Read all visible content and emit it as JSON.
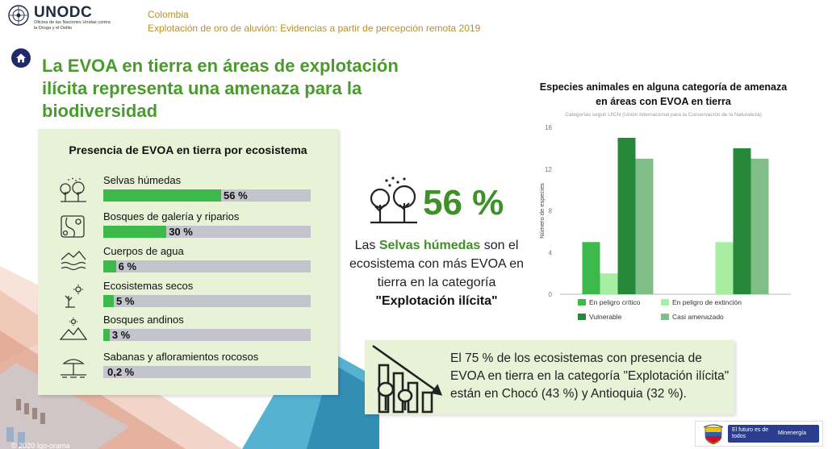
{
  "logo": {
    "name": "UNODC",
    "sub": "Oficina de las Naciones Unidas contra la Droga y el Delito"
  },
  "header": {
    "line1": "Colombia",
    "line2": "Explotación de oro de aluvión: Evidencias a partir de percepción remota 2019"
  },
  "main_title": "La EVOA en tierra en áreas de explotación ilícita representa una amenaza para la biodiversidad",
  "ecosystems": {
    "title": "Presencia de EVOA en tierra por ecosistema",
    "items": [
      {
        "label": "Selvas húmedas",
        "value": 56,
        "value_label": "56 %",
        "icon": "tropical-forest-icon"
      },
      {
        "label": "Bosques de galería y riparios",
        "value": 30,
        "value_label": "30 %",
        "icon": "riparian-forest-icon"
      },
      {
        "label": "Cuerpos de agua",
        "value": 6,
        "value_label": "6 %",
        "icon": "water-body-icon"
      },
      {
        "label": "Ecosistemas secos",
        "value": 5,
        "value_label": "5 %",
        "icon": "dry-ecosystem-icon"
      },
      {
        "label": "Bosques andinos",
        "value": 3,
        "value_label": "3 %",
        "icon": "andean-forest-icon"
      },
      {
        "label": "Sabanas y afloramientos rocosos",
        "value": 0.2,
        "value_label": "0,2 %",
        "icon": "savanna-icon"
      }
    ]
  },
  "highlight": {
    "value": "56 %",
    "text_pre": "Las",
    "text_hl": "Selvas húmedas",
    "text_mid": "son el ecosistema con más EVOA en tierra en la categoría",
    "text_strong": "\"Explotación ilícita\""
  },
  "chart_data": {
    "type": "bar",
    "title": "Especies animales en alguna categoría de amenaza en áreas con EVOA en tierra",
    "subtitle": "Categorías según UICN (Unión Internacional para la Conservación de la Naturaleza)",
    "ylabel": "Número de especies",
    "xlabel": "",
    "ylim": [
      0,
      16
    ],
    "yticks": [
      0,
      4,
      8,
      12,
      16
    ],
    "categories": [
      "",
      ""
    ],
    "series": [
      {
        "name": "En peligro crítico",
        "color": "#3cb94a",
        "values": [
          5,
          0
        ]
      },
      {
        "name": "En peligro de extinción",
        "color": "#a8eea2",
        "values": [
          2,
          5
        ]
      },
      {
        "name": "Vulnerable",
        "color": "#26883a",
        "values": [
          15,
          14
        ]
      },
      {
        "name": "Casi amenazado",
        "color": "#7fbf87",
        "values": [
          13,
          13
        ]
      }
    ],
    "grid": false,
    "legend": "bottom"
  },
  "info": {
    "text": "El 75 % de los ecosistemas con presencia de EVOA en tierra en la categoría \"Explotación ilícita\" están en Chocó (43 %) y Antioquia (32 %)."
  },
  "footer": {
    "slogan": "El futuro es de todos",
    "ministry": "Minenergía",
    "copyright": "© 2020 Igo-orama"
  },
  "colors": {
    "green_title": "#4a9a2e",
    "gold": "#b8912a",
    "panel": "#e7f2d6",
    "bar_fill": "#3cb94a",
    "bar_track": "#c4c4cc",
    "navy": "#1f2a6b"
  }
}
